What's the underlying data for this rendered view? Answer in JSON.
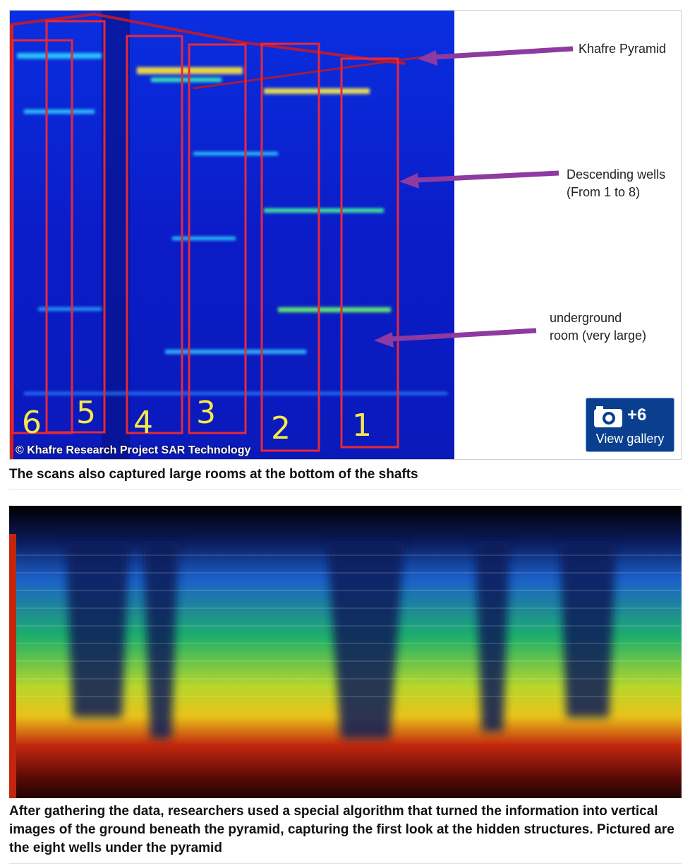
{
  "figure1": {
    "annotations": {
      "khafre": "Khafre Pyramid",
      "wells_line1": "Descending wells",
      "wells_line2": "(From 1 to 8)",
      "room_line1": "underground",
      "room_line2": "room (very large)"
    },
    "well_labels": [
      "6",
      "5",
      "4",
      "3",
      "2",
      "1"
    ],
    "credit": "© Khafre Research Project SAR Technology",
    "gallery": {
      "count": "+6",
      "label": "View gallery",
      "icon": "camera-icon"
    },
    "colors": {
      "scan_blue": "#0b1fd6",
      "box_red": "#e8283a",
      "arrow_purple": "#8e3aa0"
    }
  },
  "captions": {
    "first": "The scans also captured large rooms at the bottom of the shafts",
    "second": "After gathering the data, researchers used a special algorithm that turned the information into vertical images of the ground beneath the pyramid, capturing the first look at the hidden structures. Pictured are the eight wells under the pyramid"
  }
}
